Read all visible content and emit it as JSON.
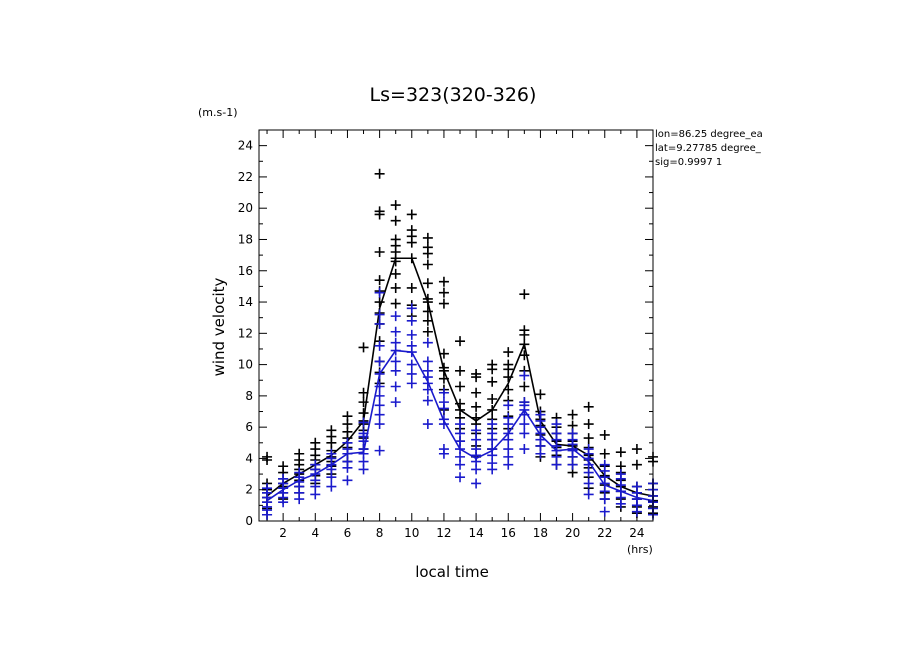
{
  "chart_data": {
    "type": "scatter",
    "title": "Ls=323(320-326)",
    "xlabel": "local time",
    "ylabel": "wind velocity",
    "x_unit": "(hrs)",
    "y_unit": "(m.s-1)",
    "xlim": [
      0.5,
      25
    ],
    "ylim": [
      0,
      25
    ],
    "xticks": [
      2,
      4,
      6,
      8,
      10,
      12,
      14,
      16,
      18,
      20,
      22,
      24
    ],
    "yticks": [
      0,
      2,
      4,
      6,
      8,
      10,
      12,
      14,
      16,
      18,
      20,
      22,
      24
    ],
    "info_lines": [
      "lon=86.25 degree_ea",
      "lat=9.27785 degree_",
      "sig=0.9997 1"
    ],
    "series": [
      {
        "color": "#000000",
        "x": [
          1,
          2,
          3,
          4,
          5,
          6,
          7,
          8,
          9,
          10,
          11,
          12,
          13,
          14,
          15,
          16,
          17,
          18,
          19,
          20,
          21,
          22,
          23,
          24,
          25
        ],
        "mean": [
          1.6,
          2.4,
          3.0,
          3.6,
          4.2,
          5.1,
          6.4,
          13.6,
          16.8,
          16.8,
          14.0,
          9.6,
          7.1,
          6.4,
          7.1,
          8.8,
          11.3,
          6.4,
          4.9,
          4.8,
          4.2,
          2.9,
          2.2,
          1.8,
          1.6
        ],
        "points": [
          [
            0.4,
            0.8,
            1.2,
            1.5,
            1.8,
            2.0,
            2.4,
            3.9,
            4.1
          ],
          [
            1.4,
            1.8,
            2.2,
            2.4,
            2.7,
            3.1,
            3.5
          ],
          [
            1.8,
            2.2,
            2.6,
            3.0,
            3.3,
            3.6,
            3.9,
            4.3
          ],
          [
            2.4,
            2.9,
            3.3,
            3.6,
            3.9,
            4.2,
            4.6,
            5.0
          ],
          [
            3.0,
            3.5,
            3.8,
            4.1,
            4.5,
            5.0,
            5.4,
            5.8
          ],
          [
            3.8,
            4.3,
            4.7,
            5.0,
            5.3,
            5.7,
            6.2,
            6.7
          ],
          [
            4.6,
            5.3,
            5.8,
            6.2,
            6.4,
            6.9,
            7.6,
            8.2,
            11.1
          ],
          [
            8.8,
            9.5,
            10.2,
            11.5,
            12.6,
            13.3,
            14.0,
            14.7,
            15.4,
            17.2,
            19.6,
            19.8,
            22.2
          ],
          [
            13.9,
            14.9,
            15.8,
            16.6,
            16.8,
            17.2,
            17.6,
            18.0,
            19.2,
            20.2
          ],
          [
            13.1,
            13.8,
            14.9,
            16.8,
            17.8,
            18.2,
            18.6,
            19.6
          ],
          [
            12.1,
            12.8,
            13.4,
            14.0,
            14.2,
            15.2,
            16.4,
            17.1,
            17.5,
            18.1
          ],
          [
            7.1,
            8.4,
            9.1,
            9.6,
            9.8,
            10.7,
            13.9,
            14.6,
            15.3
          ],
          [
            5.1,
            5.9,
            6.6,
            7.1,
            7.5,
            8.6,
            9.6,
            11.5
          ],
          [
            4.1,
            4.8,
            5.6,
            6.2,
            6.6,
            7.3,
            8.2,
            9.2,
            9.4
          ],
          [
            4.6,
            5.2,
            5.9,
            6.5,
            7.1,
            7.8,
            8.9,
            9.7,
            10.0
          ],
          [
            5.9,
            6.7,
            7.7,
            8.4,
            9.2,
            9.7,
            10.0,
            10.8
          ],
          [
            7.6,
            8.6,
            9.6,
            10.6,
            11.3,
            11.9,
            12.2,
            14.5
          ],
          [
            4.1,
            4.8,
            5.5,
            6.1,
            6.5,
            7.0,
            8.1
          ],
          [
            3.6,
            4.2,
            4.7,
            5.1,
            5.6,
            6.0,
            6.6
          ],
          [
            3.1,
            3.6,
            4.1,
            4.6,
            4.8,
            5.1,
            5.6,
            6.1,
            6.8
          ],
          [
            2.1,
            2.8,
            3.4,
            3.9,
            4.2,
            4.7,
            5.3,
            6.2,
            7.3
          ],
          [
            1.4,
            1.8,
            2.3,
            2.9,
            3.5,
            4.3,
            5.5
          ],
          [
            0.9,
            1.4,
            1.9,
            2.2,
            2.6,
            3.1,
            3.5,
            4.4
          ],
          [
            0.5,
            0.9,
            1.4,
            1.8,
            2.2,
            3.6,
            4.6
          ],
          [
            0.5,
            0.9,
            1.3,
            1.6,
            2.0,
            2.4,
            3.8,
            4.1
          ]
        ]
      },
      {
        "color": "#1a1acc",
        "x": [
          1,
          2,
          3,
          4,
          5,
          6,
          7,
          8,
          9,
          10,
          11,
          12,
          13,
          14,
          15,
          16,
          17,
          18,
          19,
          20,
          21,
          22,
          23,
          24,
          25
        ],
        "mean": [
          1.3,
          2.0,
          2.6,
          3.0,
          3.6,
          4.3,
          4.4,
          9.4,
          10.9,
          10.8,
          8.9,
          6.4,
          4.6,
          4.0,
          4.5,
          5.6,
          7.1,
          5.5,
          4.5,
          4.6,
          3.8,
          2.3,
          1.9,
          1.5,
          1.3
        ],
        "points": [
          [
            0.4,
            0.7,
            0.9,
            1.2,
            1.5,
            1.8,
            2.1
          ],
          [
            1.2,
            1.5,
            1.8,
            2.1,
            2.4,
            2.7
          ],
          [
            1.4,
            1.8,
            2.2,
            2.5,
            2.8,
            3.1
          ],
          [
            1.7,
            2.2,
            2.6,
            3.0,
            3.3,
            3.6
          ],
          [
            2.2,
            2.8,
            3.3,
            3.6,
            4.0,
            4.3
          ],
          [
            2.6,
            3.4,
            3.8,
            4.3,
            4.6,
            5.0
          ],
          [
            3.3,
            3.8,
            4.3,
            4.6,
            5.1,
            5.4,
            5.6,
            6.3
          ],
          [
            4.5,
            6.2,
            6.8,
            7.4,
            8.0,
            8.6,
            9.4,
            10.2,
            11.2,
            12.6,
            13.2,
            14.6
          ],
          [
            7.6,
            8.6,
            9.6,
            10.2,
            10.9,
            11.4,
            12.1,
            13.1
          ],
          [
            8.8,
            9.4,
            10.0,
            10.8,
            11.2,
            11.9,
            12.8,
            13.6
          ],
          [
            6.2,
            7.7,
            8.4,
            8.8,
            9.2,
            9.6,
            10.2,
            11.4
          ],
          [
            4.3,
            4.6,
            6.2,
            6.5,
            7.2,
            7.6,
            8.2
          ],
          [
            2.8,
            3.6,
            4.1,
            4.6,
            5.1,
            5.6,
            6.2
          ],
          [
            2.4,
            3.3,
            3.8,
            4.2,
            4.6,
            5.2,
            5.8
          ],
          [
            3.3,
            3.7,
            4.2,
            4.6,
            5.2,
            5.6,
            6.2
          ],
          [
            3.6,
            4.1,
            4.6,
            5.2,
            5.6,
            6.2,
            6.6,
            7.4
          ],
          [
            4.6,
            5.6,
            6.2,
            6.8,
            7.1,
            7.4,
            7.6,
            9.3
          ],
          [
            4.3,
            4.8,
            5.2,
            5.6,
            6.0,
            6.4,
            6.8
          ],
          [
            3.6,
            4.1,
            4.5,
            4.8,
            5.2,
            5.6,
            6.2
          ],
          [
            3.6,
            4.1,
            4.5,
            4.6,
            4.9,
            5.2,
            5.6
          ],
          [
            1.7,
            2.4,
            3.1,
            3.6,
            4.0,
            4.3,
            4.6
          ],
          [
            0.6,
            1.4,
            1.9,
            2.4,
            2.8,
            3.2,
            3.6
          ],
          [
            1.1,
            1.5,
            1.9,
            2.3,
            2.7,
            3.0
          ],
          [
            0.6,
            1.0,
            1.4,
            1.8,
            2.2
          ],
          [
            0.4,
            0.8,
            1.2,
            1.6,
            2.0,
            2.4
          ]
        ]
      }
    ]
  }
}
